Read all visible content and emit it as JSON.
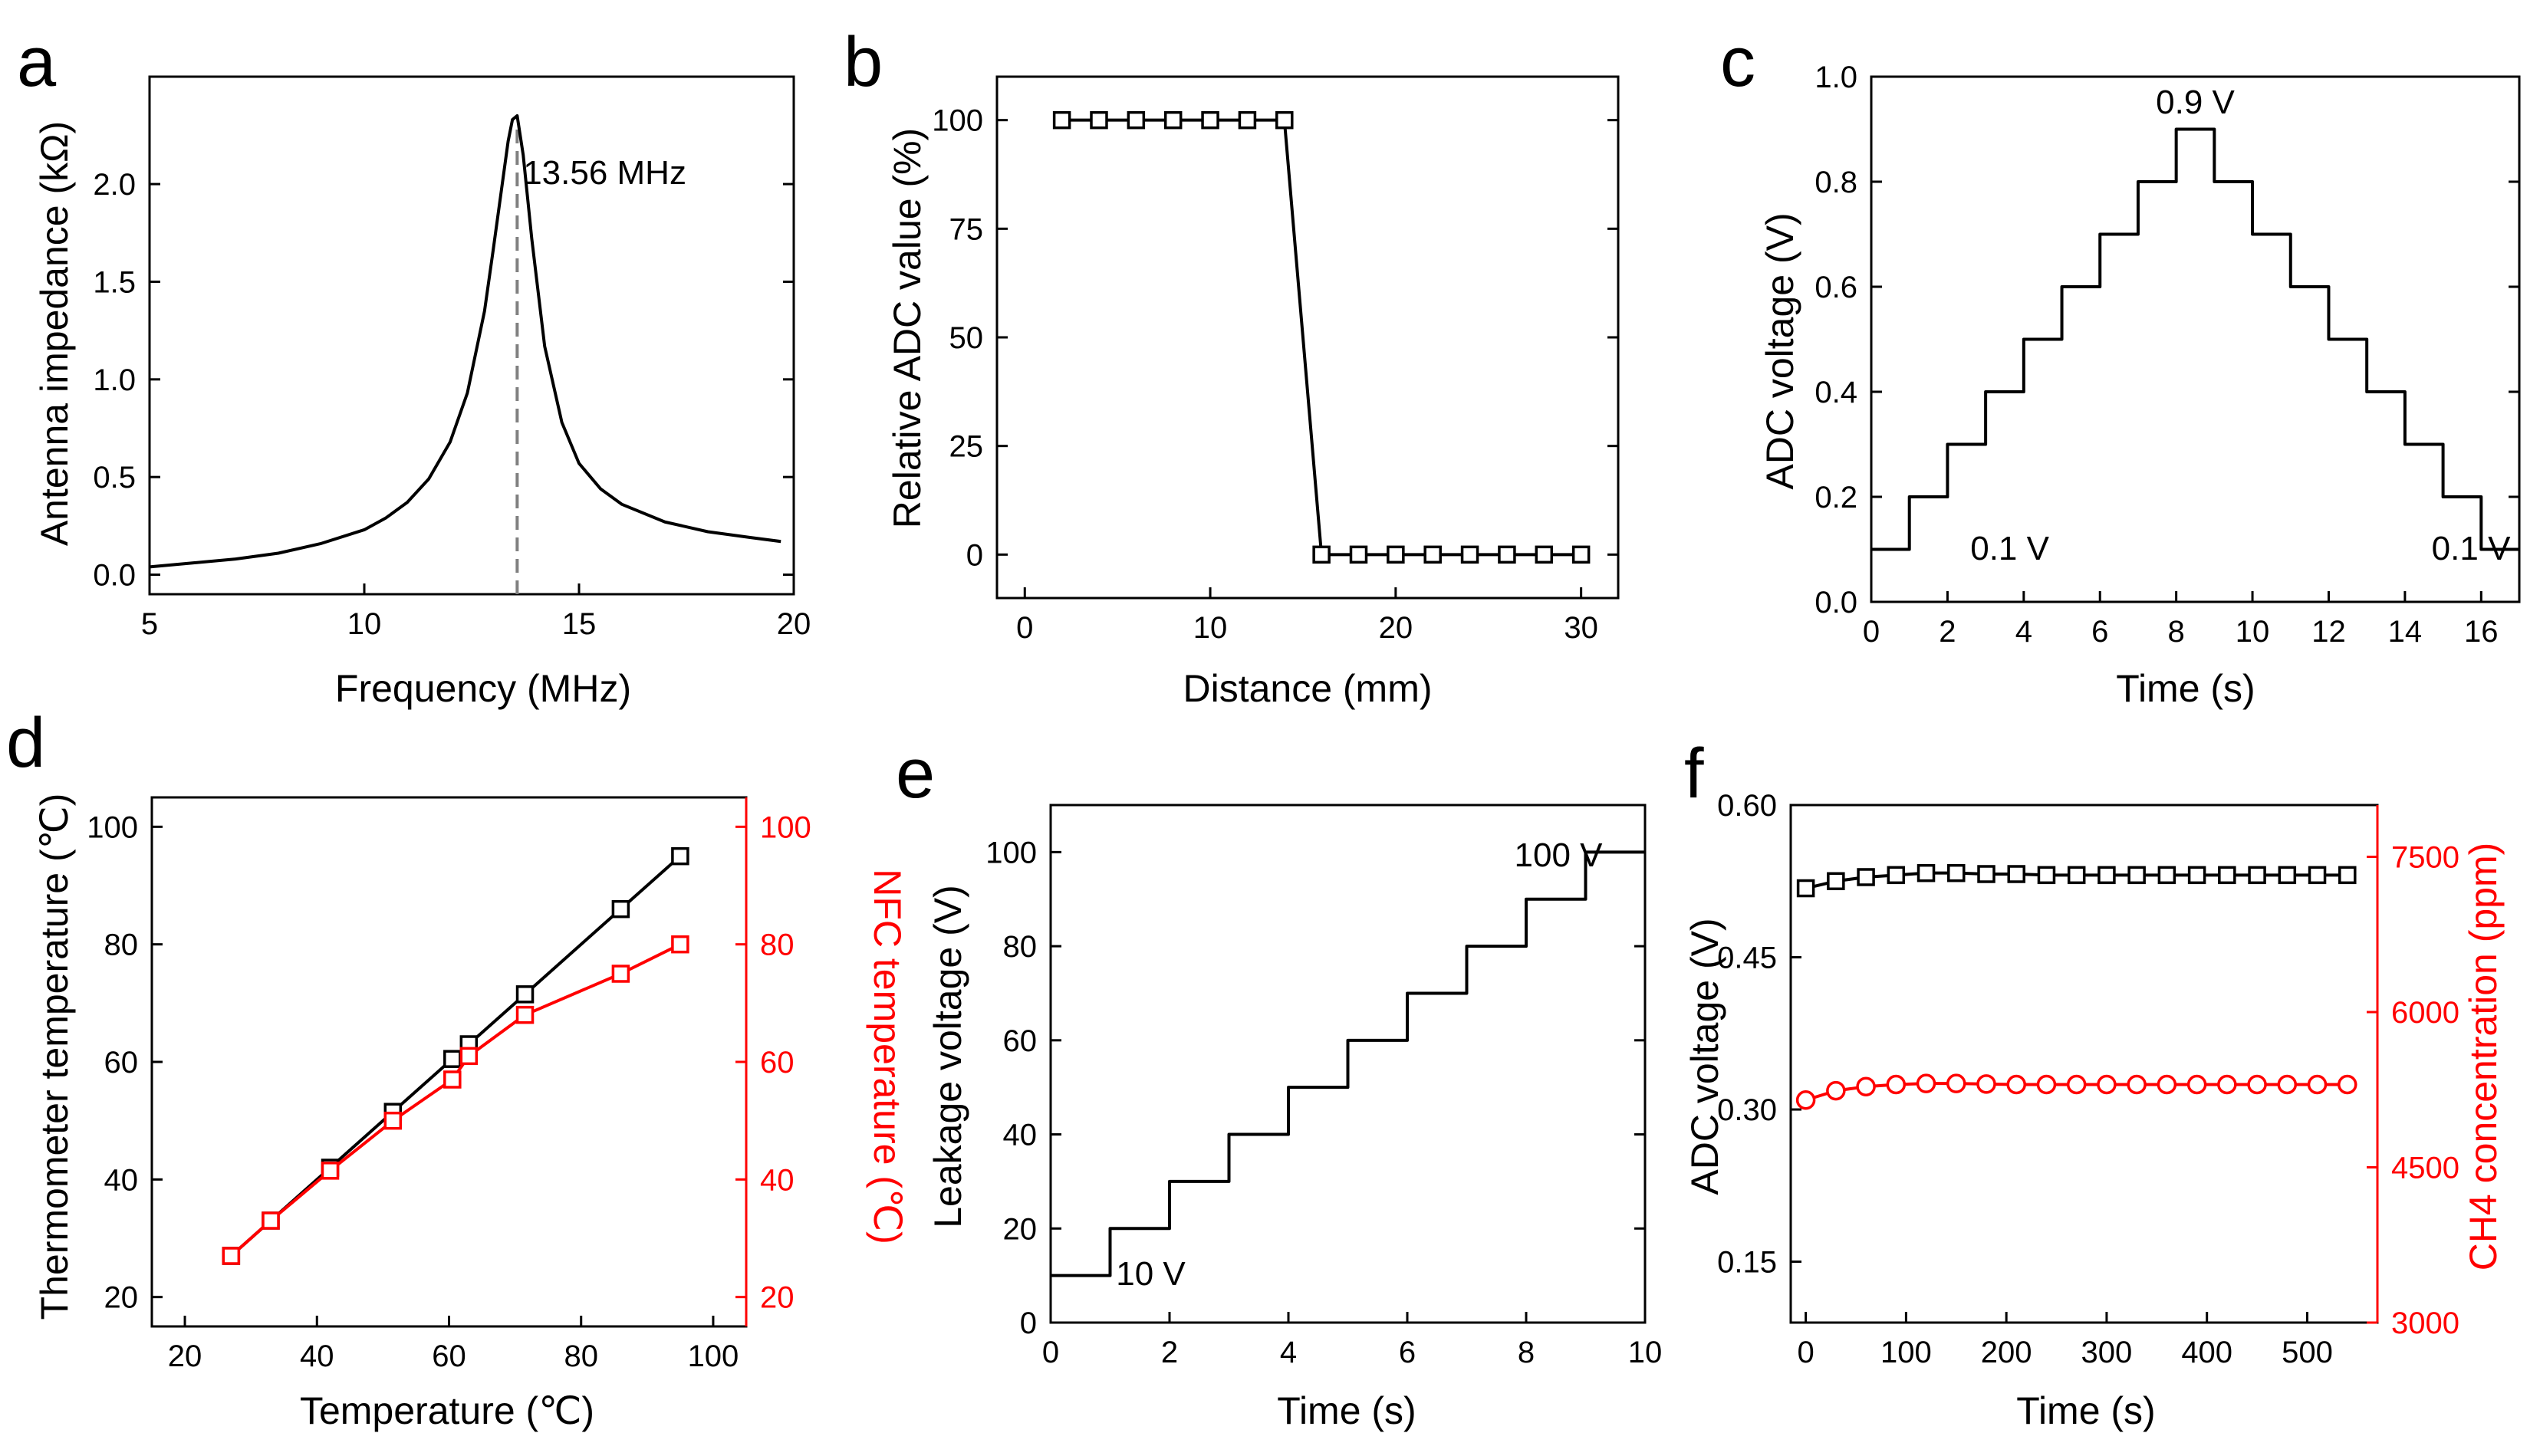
{
  "figure": {
    "background": "#ffffff",
    "colors": {
      "primary": "#000000",
      "secondary": "#ff0000",
      "guide": "#808080"
    }
  },
  "chart_data": [
    {
      "id": "a",
      "panel_label": "a",
      "type": "line",
      "xlabel": "Frequency (MHz)",
      "ylabel": "Antenna impedance (kΩ)",
      "xlim": [
        5,
        20
      ],
      "ylim": [
        -0.1,
        2.55
      ],
      "xticks": [
        5,
        10,
        15,
        20
      ],
      "xtick_labels": [
        "5",
        "10",
        "15",
        "20"
      ],
      "yticks": [
        0,
        0.5,
        1.0,
        1.5,
        2.0
      ],
      "ytick_labels": [
        "0.0",
        "0.5",
        "1.0",
        "1.5",
        "2.0"
      ],
      "series": [
        {
          "name": "Antenna impedance",
          "color": "#000000",
          "marker": "none",
          "x": [
            5,
            6,
            7,
            8,
            9,
            10,
            10.5,
            11,
            11.5,
            12,
            12.4,
            12.8,
            13.0,
            13.2,
            13.35,
            13.45,
            13.56,
            13.7,
            13.9,
            14.2,
            14.6,
            15.0,
            15.5,
            16,
            17,
            18,
            19,
            19.7
          ],
          "y": [
            0.04,
            0.06,
            0.08,
            0.11,
            0.16,
            0.23,
            0.29,
            0.37,
            0.49,
            0.68,
            0.93,
            1.35,
            1.66,
            1.98,
            2.22,
            2.33,
            2.35,
            2.15,
            1.72,
            1.17,
            0.78,
            0.57,
            0.44,
            0.36,
            0.27,
            0.22,
            0.19,
            0.17
          ]
        }
      ],
      "guides": [
        {
          "type": "vline",
          "x": 13.56,
          "y_from": -0.1,
          "y_to": 2.3,
          "style": "dashed"
        }
      ],
      "annotations": [
        {
          "text": "13.56 MHz",
          "x": 13.7,
          "y": 2.0
        }
      ]
    },
    {
      "id": "b",
      "panel_label": "b",
      "type": "line",
      "xlabel": "Distance (mm)",
      "ylabel": "Relative ADC value (%)",
      "xlim": [
        -1.5,
        32
      ],
      "ylim": [
        -10,
        110
      ],
      "xticks": [
        0,
        10,
        20,
        30
      ],
      "xtick_labels": [
        "0",
        "10",
        "20",
        "30"
      ],
      "yticks": [
        0,
        25,
        50,
        75,
        100
      ],
      "ytick_labels": [
        "0",
        "25",
        "50",
        "75",
        "100"
      ],
      "series": [
        {
          "name": "Relative ADC value",
          "color": "#000000",
          "marker": "square",
          "x": [
            2,
            4,
            6,
            8,
            10,
            12,
            14,
            16,
            18,
            20,
            22,
            24,
            26,
            28,
            30
          ],
          "y": [
            100,
            100,
            100,
            100,
            100,
            100,
            100,
            0,
            0,
            0,
            0,
            0,
            0,
            0,
            0
          ]
        }
      ]
    },
    {
      "id": "c",
      "panel_label": "c",
      "type": "line",
      "xlabel": "Time (s)",
      "ylabel": "ADC voltage (V)",
      "xlim": [
        0,
        17
      ],
      "ylim": [
        0,
        1.0
      ],
      "xticks": [
        0,
        2,
        4,
        6,
        8,
        10,
        12,
        14,
        16
      ],
      "xtick_labels": [
        "0",
        "2",
        "4",
        "6",
        "8",
        "10",
        "12",
        "14",
        "16"
      ],
      "yticks": [
        0,
        0.2,
        0.4,
        0.6,
        0.8,
        1.0
      ],
      "ytick_labels": [
        "0.0",
        "0.2",
        "0.4",
        "0.6",
        "0.8",
        "1.0"
      ],
      "series": [
        {
          "name": "ADC voltage",
          "color": "#000000",
          "marker": "none",
          "x": [
            0,
            1,
            1,
            2,
            2,
            3,
            3,
            4,
            4,
            5,
            5,
            6,
            6,
            7,
            7,
            8,
            8,
            9,
            9,
            10,
            10,
            11,
            11,
            12,
            12,
            13,
            13,
            14,
            14,
            15,
            15,
            16,
            16,
            17
          ],
          "y": [
            0.1,
            0.1,
            0.2,
            0.2,
            0.3,
            0.3,
            0.4,
            0.4,
            0.5,
            0.5,
            0.6,
            0.6,
            0.7,
            0.7,
            0.8,
            0.8,
            0.9,
            0.9,
            0.8,
            0.8,
            0.7,
            0.7,
            0.6,
            0.6,
            0.5,
            0.5,
            0.4,
            0.4,
            0.3,
            0.3,
            0.2,
            0.2,
            0.1,
            0.1
          ]
        }
      ],
      "annotations": [
        {
          "text": "0.9 V",
          "x": 8.5,
          "y": 0.93
        },
        {
          "text": "0.1 V",
          "x": 2.6,
          "y": 0.08
        },
        {
          "text": "0.1 V",
          "x": 14.7,
          "y": 0.08
        }
      ]
    },
    {
      "id": "d",
      "panel_label": "d",
      "type": "line",
      "xlabel": "Temperature (℃)",
      "ylabel": "Thermometer temperature (℃)",
      "y2label": "NFC temperature (℃)",
      "xlim": [
        15,
        105
      ],
      "ylim": [
        15,
        105
      ],
      "y2lim": [
        15,
        105
      ],
      "xticks": [
        20,
        40,
        60,
        80,
        100
      ],
      "xtick_labels": [
        "20",
        "40",
        "60",
        "80",
        "100"
      ],
      "yticks": [
        20,
        40,
        60,
        80,
        100
      ],
      "ytick_labels": [
        "20",
        "40",
        "60",
        "80",
        "100"
      ],
      "y2ticks": [
        20,
        40,
        60,
        80,
        100
      ],
      "y2tick_labels": [
        "20",
        "40",
        "60",
        "80",
        "100"
      ],
      "series": [
        {
          "name": "Thermometer temperature",
          "axis": "left",
          "color": "#000000",
          "marker": "square",
          "x": [
            27,
            33,
            42,
            51.5,
            60.5,
            63,
            71.5,
            86,
            95
          ],
          "y": [
            27,
            33,
            42,
            51.5,
            60.5,
            63,
            71.5,
            86,
            95
          ]
        },
        {
          "name": "NFC temperature",
          "axis": "right",
          "color": "#ff0000",
          "marker": "square",
          "x": [
            27,
            33,
            42,
            51.5,
            60.5,
            63,
            71.5,
            86,
            95
          ],
          "y": [
            27,
            33,
            41.5,
            50,
            57,
            61,
            68,
            75,
            80
          ]
        }
      ]
    },
    {
      "id": "e",
      "panel_label": "e",
      "type": "line",
      "xlabel": "Time (s)",
      "ylabel": "Leakage voltage (V)",
      "xlim": [
        0,
        10
      ],
      "ylim": [
        0,
        110
      ],
      "xticks": [
        0,
        2,
        4,
        6,
        8,
        10
      ],
      "xtick_labels": [
        "0",
        "2",
        "4",
        "6",
        "8",
        "10"
      ],
      "yticks": [
        0,
        20,
        40,
        60,
        80,
        100
      ],
      "ytick_labels": [
        "0",
        "20",
        "40",
        "60",
        "80",
        "100"
      ],
      "series": [
        {
          "name": "Leakage voltage",
          "color": "#000000",
          "marker": "none",
          "x": [
            0,
            1,
            1,
            2,
            2,
            3,
            3,
            4,
            4,
            5,
            5,
            6,
            6,
            7,
            7,
            8,
            8,
            9,
            9,
            10
          ],
          "y": [
            10,
            10,
            20,
            20,
            30,
            30,
            40,
            40,
            50,
            50,
            60,
            60,
            70,
            70,
            80,
            80,
            90,
            90,
            100,
            100
          ]
        }
      ],
      "annotations": [
        {
          "text": "100 V",
          "x": 7.8,
          "y": 97
        },
        {
          "text": "10 V",
          "x": 1.1,
          "y": 8
        }
      ]
    },
    {
      "id": "f",
      "panel_label": "f",
      "type": "line",
      "xlabel": "Time (s)",
      "ylabel": "ADC voltage (V)",
      "y2label": "CH4 concentration (ppm)",
      "xlim": [
        -15,
        570
      ],
      "ylim": [
        0.09,
        0.6
      ],
      "y2lim": [
        3000,
        8000
      ],
      "xticks": [
        0,
        100,
        200,
        300,
        400,
        500
      ],
      "xtick_labels": [
        "0",
        "100",
        "200",
        "300",
        "400",
        "500"
      ],
      "yticks": [
        0.15,
        0.3,
        0.45,
        0.6
      ],
      "ytick_labels": [
        "0.15",
        "0.30",
        "0.45",
        "0.60"
      ],
      "y2ticks": [
        3000,
        4500,
        6000,
        7500
      ],
      "y2tick_labels": [
        "3000",
        "4500",
        "6000",
        "7500"
      ],
      "series": [
        {
          "name": "ADC voltage",
          "axis": "left",
          "color": "#000000",
          "marker": "square",
          "x": [
            0,
            30,
            60,
            90,
            120,
            150,
            180,
            210,
            240,
            270,
            300,
            330,
            360,
            390,
            420,
            450,
            480,
            510,
            540
          ],
          "y": [
            0.518,
            0.525,
            0.529,
            0.531,
            0.533,
            0.533,
            0.532,
            0.532,
            0.531,
            0.531,
            0.531,
            0.531,
            0.531,
            0.531,
            0.531,
            0.531,
            0.531,
            0.531,
            0.531
          ]
        },
        {
          "name": "CH4 concentration",
          "axis": "right",
          "color": "#ff0000",
          "marker": "circle",
          "x": [
            0,
            30,
            60,
            90,
            120,
            150,
            180,
            210,
            240,
            270,
            300,
            330,
            360,
            390,
            420,
            450,
            480,
            510,
            540
          ],
          "y": [
            5150,
            5240,
            5280,
            5300,
            5310,
            5310,
            5305,
            5300,
            5300,
            5300,
            5300,
            5300,
            5300,
            5300,
            5300,
            5300,
            5300,
            5300,
            5300
          ]
        }
      ]
    }
  ]
}
